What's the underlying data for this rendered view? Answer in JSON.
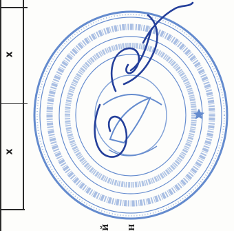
{
  "table": {
    "cell_marks": [
      "x",
      "x"
    ]
  },
  "edge_text": [
    "Й",
    "Н"
  ],
  "seal": {
    "colors": {
      "ink": "#3f6fc4",
      "signature": "#243f9a"
    }
  }
}
